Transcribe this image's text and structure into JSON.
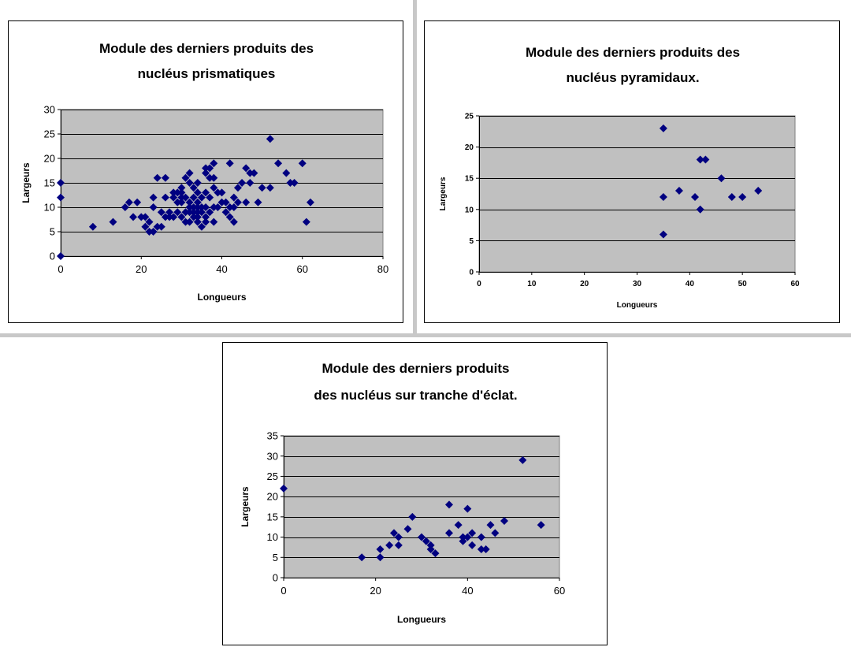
{
  "chart_data": [
    {
      "type": "scatter",
      "title": [
        "Module des derniers produits des",
        "nucléus prismatiques"
      ],
      "xlabel": "Longueurs",
      "ylabel": "Largeurs",
      "xlim": [
        0,
        80
      ],
      "ylim": [
        0,
        30
      ],
      "xticks": [
        0,
        20,
        40,
        60,
        80
      ],
      "yticks": [
        0,
        5,
        10,
        15,
        20,
        25,
        30
      ],
      "grid": "horizontal",
      "plot_background": "#c0c0c0",
      "marker": "diamond",
      "marker_color": "#000080",
      "points": [
        [
          0,
          0
        ],
        [
          0,
          12
        ],
        [
          0,
          15
        ],
        [
          8,
          6
        ],
        [
          13,
          7
        ],
        [
          16,
          10
        ],
        [
          17,
          11
        ],
        [
          18,
          8
        ],
        [
          19,
          11
        ],
        [
          20,
          8
        ],
        [
          21,
          6
        ],
        [
          21,
          8
        ],
        [
          22,
          5
        ],
        [
          22,
          7
        ],
        [
          23,
          5
        ],
        [
          23,
          10
        ],
        [
          23,
          12
        ],
        [
          24,
          6
        ],
        [
          24,
          16
        ],
        [
          25,
          6
        ],
        [
          25,
          9
        ],
        [
          26,
          8
        ],
        [
          26,
          12
        ],
        [
          26,
          16
        ],
        [
          27,
          8
        ],
        [
          27,
          9
        ],
        [
          28,
          8
        ],
        [
          28,
          12
        ],
        [
          28,
          13
        ],
        [
          29,
          9
        ],
        [
          29,
          11
        ],
        [
          29,
          13
        ],
        [
          30,
          8
        ],
        [
          30,
          11
        ],
        [
          30,
          12
        ],
        [
          30,
          13
        ],
        [
          30,
          14
        ],
        [
          31,
          7
        ],
        [
          31,
          9
        ],
        [
          31,
          12
        ],
        [
          31,
          16
        ],
        [
          32,
          7
        ],
        [
          32,
          9
        ],
        [
          32,
          10
        ],
        [
          32,
          11
        ],
        [
          32,
          15
        ],
        [
          32,
          17
        ],
        [
          33,
          8
        ],
        [
          33,
          9
        ],
        [
          33,
          10
        ],
        [
          33,
          12
        ],
        [
          33,
          14
        ],
        [
          34,
          7
        ],
        [
          34,
          8
        ],
        [
          34,
          9
        ],
        [
          34,
          10
        ],
        [
          34,
          11
        ],
        [
          34,
          13
        ],
        [
          34,
          15
        ],
        [
          35,
          6
        ],
        [
          35,
          9
        ],
        [
          35,
          10
        ],
        [
          35,
          12
        ],
        [
          36,
          7
        ],
        [
          36,
          8
        ],
        [
          36,
          10
        ],
        [
          36,
          13
        ],
        [
          36,
          17
        ],
        [
          36,
          18
        ],
        [
          37,
          9
        ],
        [
          37,
          12
        ],
        [
          37,
          16
        ],
        [
          37,
          18
        ],
        [
          38,
          7
        ],
        [
          38,
          10
        ],
        [
          38,
          14
        ],
        [
          38,
          16
        ],
        [
          38,
          19
        ],
        [
          39,
          10
        ],
        [
          39,
          13
        ],
        [
          40,
          11
        ],
        [
          40,
          13
        ],
        [
          41,
          9
        ],
        [
          41,
          11
        ],
        [
          42,
          8
        ],
        [
          42,
          10
        ],
        [
          42,
          19
        ],
        [
          43,
          7
        ],
        [
          43,
          10
        ],
        [
          43,
          12
        ],
        [
          44,
          11
        ],
        [
          44,
          14
        ],
        [
          45,
          15
        ],
        [
          46,
          11
        ],
        [
          46,
          18
        ],
        [
          47,
          15
        ],
        [
          47,
          17
        ],
        [
          48,
          17
        ],
        [
          49,
          11
        ],
        [
          50,
          14
        ],
        [
          52,
          14
        ],
        [
          52,
          24
        ],
        [
          54,
          19
        ],
        [
          56,
          17
        ],
        [
          57,
          15
        ],
        [
          58,
          15
        ],
        [
          60,
          19
        ],
        [
          61,
          7
        ],
        [
          62,
          11
        ]
      ]
    },
    {
      "type": "scatter",
      "title": [
        "Module des derniers produits des",
        "nucléus pyramidaux."
      ],
      "xlabel": "Longueurs",
      "ylabel": "Largeurs",
      "xlim": [
        0,
        60
      ],
      "ylim": [
        0,
        25
      ],
      "xticks": [
        0,
        10,
        20,
        30,
        40,
        50,
        60
      ],
      "yticks": [
        0,
        5,
        10,
        15,
        20,
        25
      ],
      "grid": "horizontal",
      "plot_background": "#c0c0c0",
      "marker": "diamond",
      "marker_color": "#000080",
      "points": [
        [
          35,
          23
        ],
        [
          35,
          12
        ],
        [
          35,
          6
        ],
        [
          38,
          13
        ],
        [
          41,
          12
        ],
        [
          42,
          18
        ],
        [
          42,
          10
        ],
        [
          43,
          18
        ],
        [
          46,
          15
        ],
        [
          48,
          12
        ],
        [
          50,
          12
        ],
        [
          53,
          13
        ]
      ]
    },
    {
      "type": "scatter",
      "title": [
        "Module des derniers produits",
        "des nucléus sur tranche d'éclat."
      ],
      "xlabel": "Longueurs",
      "ylabel": "Largeurs",
      "xlim": [
        0,
        60
      ],
      "ylim": [
        0,
        35
      ],
      "xticks": [
        0,
        20,
        40,
        60
      ],
      "yticks": [
        0,
        5,
        10,
        15,
        20,
        25,
        30,
        35
      ],
      "grid": "horizontal",
      "plot_background": "#c0c0c0",
      "marker": "diamond",
      "marker_color": "#000080",
      "points": [
        [
          0,
          22
        ],
        [
          17,
          5
        ],
        [
          21,
          5
        ],
        [
          21,
          7
        ],
        [
          23,
          8
        ],
        [
          24,
          11
        ],
        [
          25,
          8
        ],
        [
          25,
          10
        ],
        [
          27,
          12
        ],
        [
          28,
          15
        ],
        [
          30,
          10
        ],
        [
          31,
          9
        ],
        [
          32,
          8
        ],
        [
          32,
          7
        ],
        [
          33,
          6
        ],
        [
          36,
          18
        ],
        [
          36,
          11
        ],
        [
          38,
          13
        ],
        [
          39,
          9
        ],
        [
          39,
          10
        ],
        [
          40,
          17
        ],
        [
          40,
          10
        ],
        [
          41,
          8
        ],
        [
          41,
          11
        ],
        [
          43,
          7
        ],
        [
          43,
          10
        ],
        [
          44,
          7
        ],
        [
          45,
          13
        ],
        [
          46,
          11
        ],
        [
          48,
          14
        ],
        [
          52,
          29
        ],
        [
          56,
          13
        ]
      ]
    }
  ]
}
